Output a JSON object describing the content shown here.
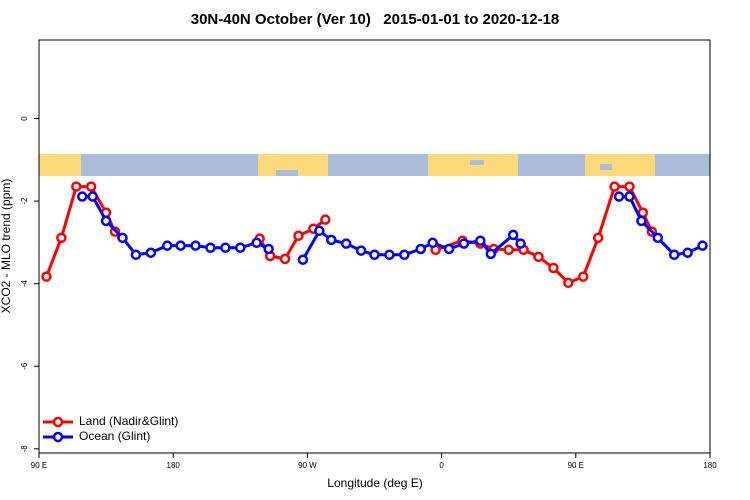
{
  "chart_data": {
    "type": "line",
    "title": "30N-40N October (Ver 10)   2015-01-01 to 2020-12-18",
    "x_label": "Longitude (deg E)",
    "y_label": "XCO2 - MLO trend (ppm)",
    "xlim": [
      90,
      540
    ],
    "xticks": [
      {
        "value": 90,
        "label": "90 E"
      },
      180,
      {
        "value": 270,
        "label": "90 W"
      },
      {
        "value": 360,
        "label": "0"
      },
      {
        "value": 450,
        "label": "90 E"
      },
      {
        "value": 540,
        "label": "180"
      }
    ],
    "ylim": [
      -8.1,
      1.9
    ],
    "yticks": [
      0,
      -2,
      -4,
      -6,
      -8
    ],
    "legend": "bottom-left",
    "series": [
      {
        "name": "Land (Nadir&Glint)",
        "color": "#ff0000",
        "x": [
          95,
          105,
          115,
          125,
          135,
          141,
          null,
          238,
          245,
          255,
          264,
          274,
          282,
          null,
          356,
          374,
          386,
          395,
          405,
          415,
          425,
          435,
          445,
          455,
          465,
          476,
          486,
          495,
          501
        ],
        "values": [
          -3.83,
          -2.89,
          -1.65,
          -1.65,
          -2.28,
          -2.74,
          null,
          -2.91,
          -3.33,
          -3.4,
          -2.84,
          -2.67,
          -2.45,
          null,
          -3.18,
          -2.96,
          -3.03,
          -3.16,
          -3.18,
          -3.18,
          -3.35,
          -3.62,
          -3.98,
          -3.83,
          -2.89,
          -1.65,
          -1.65,
          -2.28,
          -2.74
        ]
      },
      {
        "name": "Ocean (Glint)",
        "color": "#0000ff",
        "x": [
          119,
          126,
          135,
          146,
          155,
          165,
          176,
          185,
          195,
          205,
          215,
          225,
          236,
          244,
          null,
          267,
          278,
          286,
          296,
          306,
          315,
          325,
          335,
          346,
          354,
          365,
          375,
          386,
          393,
          408,
          413,
          null,
          479,
          486,
          494,
          505,
          516,
          525,
          535
        ],
        "values": [
          -1.89,
          -1.89,
          -2.48,
          -2.89,
          -3.3,
          -3.25,
          -3.08,
          -3.08,
          -3.08,
          -3.13,
          -3.13,
          -3.13,
          -3.01,
          -3.16,
          null,
          -3.42,
          -2.72,
          -2.94,
          -3.03,
          -3.2,
          -3.3,
          -3.3,
          -3.3,
          -3.16,
          -3.01,
          -3.16,
          -3.03,
          -2.96,
          -3.28,
          -2.82,
          -3.03,
          null,
          -1.89,
          -1.89,
          -2.48,
          -2.89,
          -3.3,
          -3.25,
          -3.08
        ]
      }
    ]
  }
}
